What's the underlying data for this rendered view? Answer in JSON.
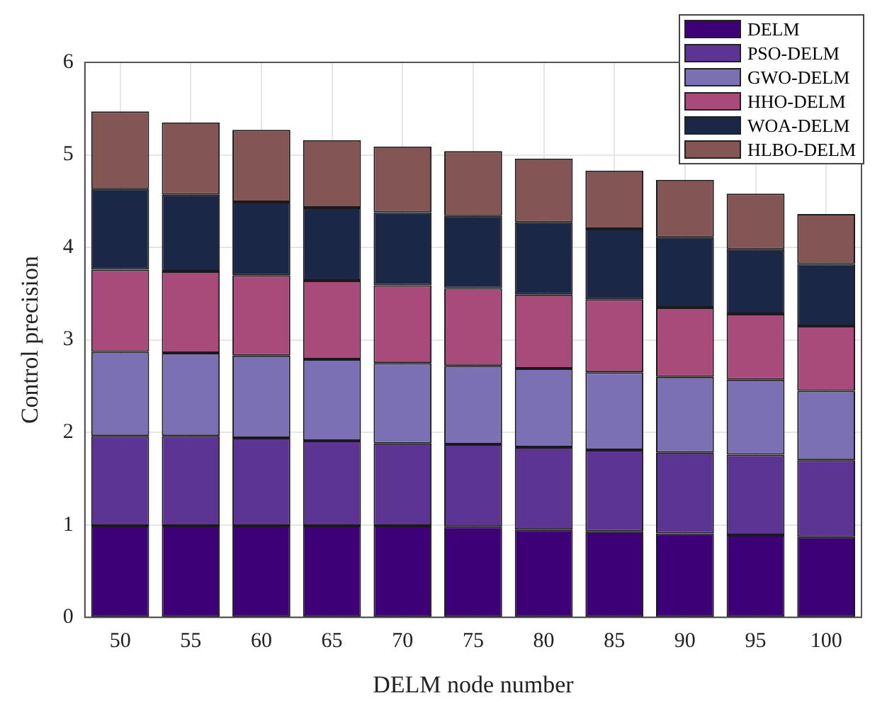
{
  "chart_data": {
    "type": "bar",
    "stacked": true,
    "xlabel": "DELM node number",
    "ylabel": "Control precision",
    "categories": [
      "50",
      "55",
      "60",
      "65",
      "70",
      "75",
      "80",
      "85",
      "90",
      "95",
      "100"
    ],
    "series": [
      {
        "name": "DELM",
        "color": "#3d0077",
        "values": [
          0.99,
          0.99,
          0.99,
          0.99,
          0.99,
          0.98,
          0.95,
          0.93,
          0.91,
          0.89,
          0.87
        ]
      },
      {
        "name": "PSO-DELM",
        "color": "#5c3494",
        "values": [
          0.97,
          0.97,
          0.95,
          0.92,
          0.89,
          0.89,
          0.89,
          0.88,
          0.87,
          0.87,
          0.83
        ]
      },
      {
        "name": "GWO-DELM",
        "color": "#7b70b4",
        "values": [
          0.91,
          0.9,
          0.89,
          0.88,
          0.87,
          0.85,
          0.85,
          0.84,
          0.82,
          0.81,
          0.75
        ]
      },
      {
        "name": "HHO-DELM",
        "color": "#a84a7a",
        "values": [
          0.89,
          0.88,
          0.87,
          0.85,
          0.84,
          0.84,
          0.8,
          0.79,
          0.75,
          0.71,
          0.7
        ]
      },
      {
        "name": "WOA-DELM",
        "color": "#1a2746",
        "values": [
          0.87,
          0.83,
          0.79,
          0.79,
          0.79,
          0.78,
          0.78,
          0.76,
          0.76,
          0.7,
          0.67
        ]
      },
      {
        "name": "HLBO-DELM",
        "color": "#835555",
        "values": [
          0.84,
          0.78,
          0.78,
          0.73,
          0.71,
          0.7,
          0.69,
          0.63,
          0.62,
          0.6,
          0.54
        ]
      }
    ],
    "ylim": [
      0,
      6
    ],
    "yticks": [
      0,
      1,
      2,
      3,
      4,
      5,
      6
    ],
    "grid": true,
    "legend": "top right"
  }
}
